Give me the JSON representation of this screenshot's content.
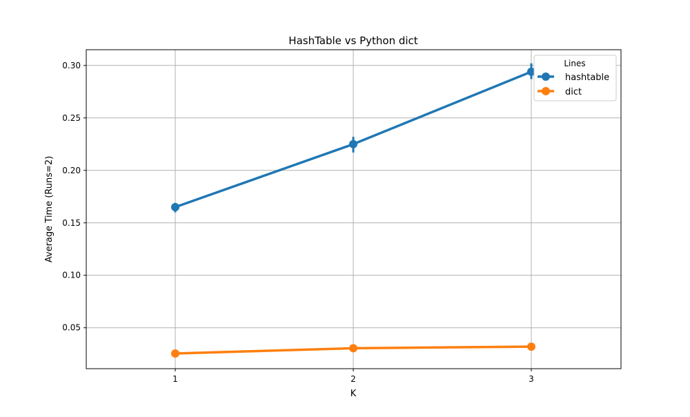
{
  "chart_data": {
    "type": "line",
    "title": "HashTable vs Python dict",
    "xlabel": "K",
    "ylabel": "Average Time (Runs=2)",
    "categories": [
      "1",
      "2",
      "3"
    ],
    "y_ticks": [
      "0.05",
      "0.10",
      "0.15",
      "0.20",
      "0.25",
      "0.30"
    ],
    "ylim": [
      0.011,
      0.315
    ],
    "grid": true,
    "legend": {
      "title": "Lines",
      "placement": "top-right"
    },
    "series": [
      {
        "name": "hashtable",
        "color": "#1f77b4",
        "values": [
          0.165,
          0.225,
          0.294
        ],
        "error": [
          [
            0.16,
            0.169
          ],
          [
            0.217,
            0.232
          ],
          [
            0.287,
            0.302
          ]
        ]
      },
      {
        "name": "dict",
        "color": "#ff7f0e",
        "values": [
          0.0255,
          0.0305,
          0.032
        ],
        "error": [
          [
            0.025,
            0.026
          ],
          [
            0.03,
            0.031
          ],
          [
            0.0315,
            0.0325
          ]
        ]
      }
    ]
  }
}
